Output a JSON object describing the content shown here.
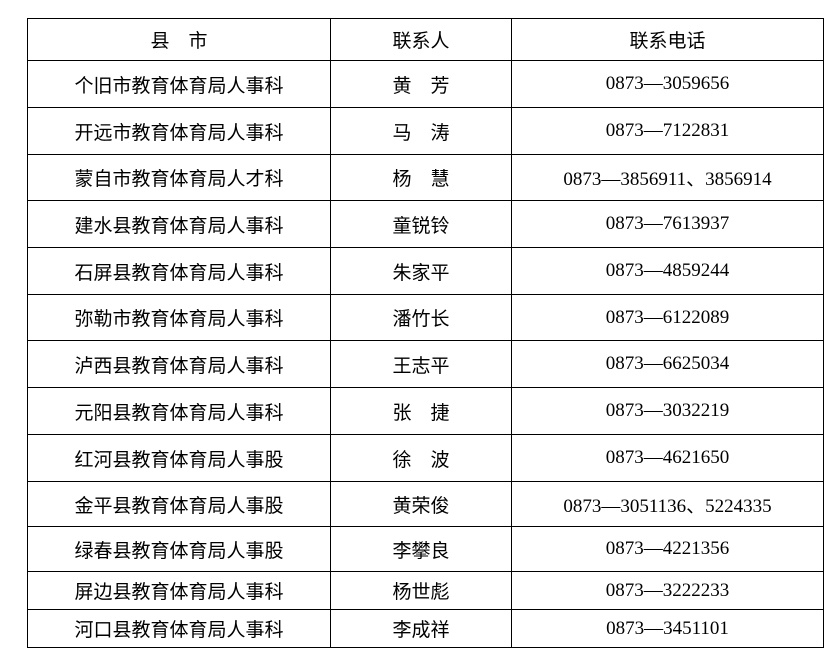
{
  "headers": [
    "县　市",
    "联系人",
    "联系电话"
  ],
  "rows": [
    {
      "county": "个旧市教育体育局人事科",
      "contact": "黄　芳",
      "phone": "0873—3059656"
    },
    {
      "county": "开远市教育体育局人事科",
      "contact": "马　涛",
      "phone": "0873—7122831"
    },
    {
      "county": "蒙自市教育体育局人才科",
      "contact": "杨　慧",
      "phone": "0873—3856911、3856914"
    },
    {
      "county": "建水县教育体育局人事科",
      "contact": "童锐铃",
      "phone": "0873—7613937"
    },
    {
      "county": "石屏县教育体育局人事科",
      "contact": "朱家平",
      "phone": "0873—4859244"
    },
    {
      "county": "弥勒市教育体育局人事科",
      "contact": "潘竹长",
      "phone": "0873—6122089"
    },
    {
      "county": "泸西县教育体育局人事科",
      "contact": "王志平",
      "phone": "0873—6625034"
    },
    {
      "county": "元阳县教育体育局人事科",
      "contact": "张　捷",
      "phone": "0873—3032219"
    },
    {
      "county": "红河县教育体育局人事股",
      "contact": "徐　波",
      "phone": "0873—4621650"
    },
    {
      "county": "金平县教育体育局人事股",
      "contact": "黄荣俊",
      "phone": "0873—3051136、5224335"
    },
    {
      "county": "绿春县教育体育局人事股",
      "contact": "李攀良",
      "phone": "0873—4221356"
    },
    {
      "county": "屏边县教育体育局人事科",
      "contact": "杨世彪",
      "phone": "0873—3222233"
    },
    {
      "county": "河口县教育体育局人事科",
      "contact": "李成祥",
      "phone": "0873—3451101"
    }
  ]
}
